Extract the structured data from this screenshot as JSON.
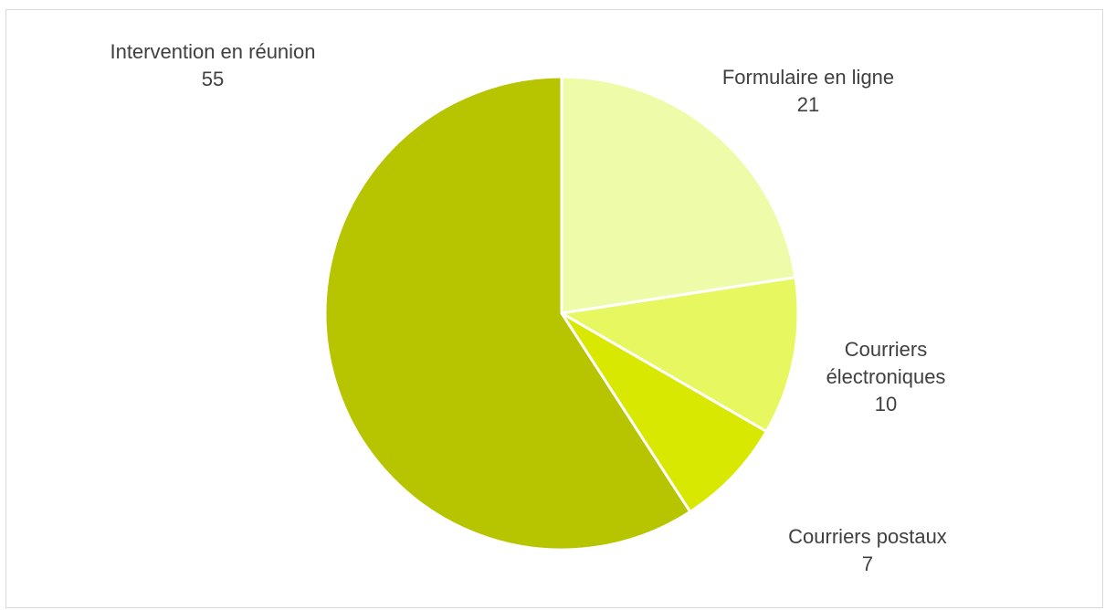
{
  "chart_data": {
    "type": "pie",
    "title": "",
    "categories": [
      "Formulaire en ligne",
      "Courriers électroniques",
      "Courriers postaux",
      "Intervention en réunion"
    ],
    "values": [
      21,
      10,
      7,
      55
    ],
    "colors": [
      "#eefba8",
      "#e7f75f",
      "#d8e800",
      "#b7c500"
    ],
    "data_labels": [
      {
        "lines": [
          "Formulaire en ligne",
          "21"
        ]
      },
      {
        "lines": [
          "Courriers",
          "électroniques",
          "10"
        ]
      },
      {
        "lines": [
          "Courriers postaux",
          "7"
        ]
      },
      {
        "lines": [
          "Intervention en réunion",
          "55"
        ]
      }
    ],
    "legend": "none"
  }
}
